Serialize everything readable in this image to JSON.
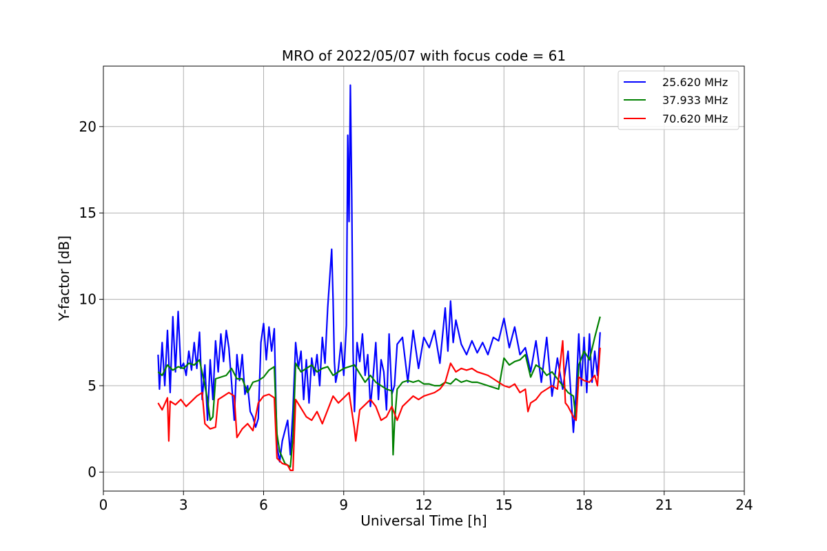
{
  "chart_data": {
    "type": "line",
    "title": "MRO of 2022/05/07 with focus code = 61",
    "xlabel": "Universal Time [h]",
    "ylabel": "Y-factor [dB]",
    "xlim": [
      0,
      24
    ],
    "ylim": [
      -1.1,
      23.5
    ],
    "xticks": [
      0,
      3,
      6,
      9,
      12,
      15,
      18,
      21,
      24
    ],
    "yticks": [
      0,
      5,
      10,
      15,
      20
    ],
    "grid": true,
    "legend_position": "top-right",
    "series": [
      {
        "name": "25.620 MHz",
        "color": "#0000ff",
        "x": [
          2.05,
          2.1,
          2.2,
          2.3,
          2.4,
          2.5,
          2.6,
          2.7,
          2.8,
          2.9,
          3.0,
          3.1,
          3.2,
          3.3,
          3.4,
          3.5,
          3.6,
          3.7,
          3.8,
          3.9,
          4.0,
          4.1,
          4.2,
          4.3,
          4.4,
          4.5,
          4.6,
          4.7,
          4.8,
          4.9,
          5.0,
          5.1,
          5.2,
          5.3,
          5.4,
          5.5,
          5.6,
          5.7,
          5.8,
          5.9,
          6.0,
          6.1,
          6.2,
          6.3,
          6.4,
          6.5,
          6.6,
          6.7,
          6.8,
          6.9,
          7.0,
          7.1,
          7.2,
          7.3,
          7.4,
          7.5,
          7.6,
          7.7,
          7.8,
          7.9,
          8.0,
          8.1,
          8.2,
          8.3,
          8.4,
          8.5,
          8.55,
          8.6,
          8.65,
          8.7,
          8.8,
          8.9,
          9.0,
          9.1,
          9.15,
          9.2,
          9.25,
          9.3,
          9.35,
          9.4,
          9.5,
          9.6,
          9.7,
          9.8,
          9.9,
          10.0,
          10.1,
          10.2,
          10.3,
          10.4,
          10.5,
          10.6,
          10.7,
          10.8,
          10.9,
          11.0,
          11.2,
          11.4,
          11.6,
          11.8,
          12.0,
          12.2,
          12.4,
          12.6,
          12.8,
          12.9,
          13.0,
          13.1,
          13.2,
          13.4,
          13.6,
          13.8,
          14.0,
          14.2,
          14.4,
          14.6,
          14.8,
          15.0,
          15.2,
          15.4,
          15.6,
          15.8,
          16.0,
          16.2,
          16.4,
          16.6,
          16.8,
          17.0,
          17.2,
          17.4,
          17.6,
          17.7,
          17.8,
          17.9,
          18.0,
          18.1,
          18.2,
          18.3,
          18.4,
          18.5,
          18.6
        ],
        "values": [
          6.8,
          4.8,
          7.5,
          5.0,
          8.2,
          4.6,
          9.0,
          5.8,
          9.3,
          6.0,
          6.3,
          5.6,
          7.0,
          5.9,
          7.5,
          6.0,
          8.1,
          4.2,
          6.2,
          3.0,
          6.5,
          4.2,
          7.6,
          5.8,
          8.0,
          6.4,
          8.2,
          7.2,
          5.2,
          3.0,
          6.8,
          5.3,
          6.8,
          4.5,
          5.0,
          3.5,
          3.2,
          2.6,
          3.1,
          7.5,
          8.6,
          6.5,
          8.4,
          7.0,
          8.3,
          1.5,
          0.6,
          1.8,
          2.4,
          3.0,
          1.0,
          3.6,
          7.5,
          6.0,
          7.0,
          4.2,
          6.5,
          4.0,
          6.6,
          5.6,
          6.8,
          5.0,
          7.8,
          6.3,
          9.5,
          11.8,
          12.9,
          10.0,
          6.4,
          5.2,
          6.0,
          7.5,
          5.6,
          8.5,
          19.5,
          14.5,
          22.4,
          16.0,
          7.0,
          3.5,
          7.5,
          6.4,
          8.0,
          5.6,
          6.8,
          3.8,
          5.5,
          7.5,
          4.2,
          6.5,
          5.8,
          3.6,
          8.0,
          4.5,
          5.0,
          7.4,
          7.8,
          5.2,
          8.2,
          6.0,
          7.8,
          7.2,
          8.2,
          6.3,
          9.5,
          7.0,
          9.9,
          7.5,
          8.8,
          7.4,
          6.8,
          7.6,
          6.9,
          7.5,
          6.8,
          7.8,
          7.6,
          8.9,
          7.2,
          8.4,
          6.8,
          7.2,
          5.8,
          7.6,
          5.2,
          7.8,
          4.4,
          6.6,
          4.8,
          7.0,
          2.3,
          4.5,
          8.0,
          5.0,
          7.8,
          4.6,
          8.0,
          5.2,
          7.0,
          5.6,
          8.1
        ]
      },
      {
        "name": "37.933 MHz",
        "color": "#008000",
        "x": [
          2.05,
          2.2,
          2.4,
          2.6,
          2.8,
          3.0,
          3.2,
          3.4,
          3.6,
          3.8,
          3.9,
          4.0,
          4.1,
          4.2,
          4.4,
          4.6,
          4.8,
          5.0,
          5.2,
          5.4,
          5.6,
          5.8,
          6.0,
          6.2,
          6.4,
          6.5,
          6.6,
          6.8,
          7.0,
          7.1,
          7.2,
          7.4,
          7.6,
          7.8,
          8.0,
          8.2,
          8.4,
          8.6,
          8.8,
          9.0,
          9.2,
          9.4,
          9.6,
          9.8,
          10.0,
          10.2,
          10.4,
          10.6,
          10.8,
          10.85,
          10.9,
          11.0,
          11.2,
          11.4,
          11.6,
          11.8,
          12.0,
          12.2,
          12.4,
          12.6,
          12.8,
          13.0,
          13.2,
          13.4,
          13.6,
          13.8,
          14.0,
          14.2,
          14.4,
          14.6,
          14.8,
          15.0,
          15.2,
          15.4,
          15.6,
          15.8,
          16.0,
          16.2,
          16.4,
          16.6,
          16.8,
          17.0,
          17.2,
          17.4,
          17.6,
          17.7,
          17.8,
          18.0,
          18.2,
          18.4,
          18.6
        ],
        "values": [
          5.8,
          5.6,
          6.2,
          5.9,
          6.1,
          6.0,
          6.3,
          6.2,
          6.5,
          5.0,
          4.2,
          3.0,
          3.2,
          5.4,
          5.5,
          5.6,
          6.0,
          5.4,
          5.4,
          4.6,
          5.2,
          5.3,
          5.5,
          5.9,
          6.1,
          2.2,
          1.2,
          0.5,
          0.3,
          2.0,
          6.3,
          5.8,
          6.0,
          6.2,
          5.8,
          6.0,
          6.1,
          5.6,
          5.8,
          6.0,
          6.1,
          6.2,
          5.7,
          5.2,
          5.6,
          5.2,
          5.0,
          4.8,
          4.7,
          1.0,
          2.8,
          4.8,
          5.2,
          5.3,
          5.2,
          5.3,
          5.1,
          5.1,
          5.0,
          5.0,
          5.2,
          5.1,
          5.4,
          5.2,
          5.3,
          5.2,
          5.2,
          5.1,
          5.0,
          4.9,
          4.8,
          6.6,
          6.2,
          6.4,
          6.5,
          6.8,
          5.5,
          6.2,
          6.0,
          5.6,
          5.8,
          5.4,
          5.0,
          4.6,
          4.4,
          3.0,
          6.2,
          7.0,
          6.5,
          7.8,
          9.0
        ]
      },
      {
        "name": "70.620 MHz",
        "color": "#ff0000",
        "x": [
          2.05,
          2.2,
          2.4,
          2.45,
          2.5,
          2.7,
          2.9,
          3.1,
          3.3,
          3.5,
          3.7,
          3.8,
          4.0,
          4.2,
          4.3,
          4.5,
          4.7,
          4.9,
          5.0,
          5.2,
          5.4,
          5.6,
          5.8,
          6.0,
          6.2,
          6.4,
          6.5,
          6.7,
          6.9,
          7.0,
          7.1,
          7.2,
          7.4,
          7.6,
          7.8,
          8.0,
          8.2,
          8.4,
          8.6,
          8.8,
          9.0,
          9.2,
          9.4,
          9.45,
          9.6,
          9.8,
          10.0,
          10.2,
          10.4,
          10.6,
          10.8,
          11.0,
          11.2,
          11.4,
          11.6,
          11.8,
          12.0,
          12.2,
          12.4,
          12.6,
          12.8,
          13.0,
          13.2,
          13.4,
          13.6,
          13.8,
          14.0,
          14.2,
          14.4,
          14.6,
          14.8,
          15.0,
          15.2,
          15.4,
          15.6,
          15.8,
          15.9,
          16.0,
          16.2,
          16.4,
          16.6,
          16.8,
          17.0,
          17.2,
          17.3,
          17.4,
          17.6,
          17.7,
          17.8,
          18.0,
          18.2,
          18.4,
          18.5,
          18.6
        ],
        "values": [
          4.0,
          3.6,
          4.3,
          1.8,
          4.1,
          3.9,
          4.2,
          3.8,
          4.1,
          4.4,
          4.6,
          2.8,
          2.5,
          2.6,
          4.2,
          4.4,
          4.6,
          4.4,
          2.0,
          2.5,
          2.8,
          2.4,
          4.0,
          4.4,
          4.5,
          4.3,
          0.8,
          0.5,
          0.4,
          0.1,
          0.1,
          4.2,
          3.7,
          3.2,
          3.0,
          3.5,
          2.8,
          3.6,
          4.4,
          4.0,
          4.3,
          4.6,
          2.5,
          1.8,
          3.6,
          3.9,
          4.2,
          3.8,
          3.0,
          3.2,
          3.8,
          3.0,
          3.8,
          4.1,
          4.4,
          4.2,
          4.4,
          4.5,
          4.6,
          4.8,
          5.2,
          6.3,
          5.8,
          6.0,
          5.9,
          6.0,
          5.8,
          5.7,
          5.6,
          5.4,
          5.2,
          5.0,
          4.9,
          5.1,
          4.6,
          4.8,
          3.5,
          4.0,
          4.2,
          4.6,
          4.8,
          5.0,
          4.8,
          7.6,
          4.0,
          3.8,
          3.2,
          3.0,
          5.5,
          5.3,
          5.2,
          5.6,
          5.0,
          7.2
        ]
      }
    ]
  }
}
